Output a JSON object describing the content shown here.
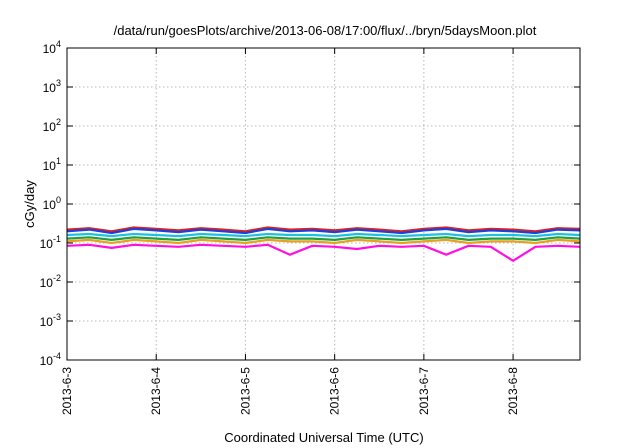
{
  "chart_data": {
    "type": "line",
    "title": "/data/run/goesPlots/archive/2013-06-08/17:00/flux/../bryn/5daysMoon.plot",
    "xlabel": "Coordinated Universal Time (UTC)",
    "ylabel": "cGy/day",
    "y_scale": "log",
    "ylim": [
      0.0001,
      10000
    ],
    "xlim": [
      "2013-06-03",
      "2013-06-08 18:00"
    ],
    "grid": true,
    "legend": "none",
    "x_ticks": [
      "2013-6-3",
      "2013-6-4",
      "2013-6-5",
      "2013-6-6",
      "2013-6-7",
      "2013-6-8"
    ],
    "y_ticks": [
      {
        "mant": "10",
        "exp": "-4"
      },
      {
        "mant": "10",
        "exp": "-3"
      },
      {
        "mant": "10",
        "exp": "-2"
      },
      {
        "mant": "10",
        "exp": "-1"
      },
      {
        "mant": "10",
        "exp": "0"
      },
      {
        "mant": "10",
        "exp": "1"
      },
      {
        "mant": "10",
        "exp": "2"
      },
      {
        "mant": "10",
        "exp": "3"
      },
      {
        "mant": "10",
        "exp": "4"
      }
    ],
    "x_days": [
      0,
      0.25,
      0.5,
      0.75,
      1,
      1.25,
      1.5,
      1.75,
      2,
      2.25,
      2.5,
      2.75,
      3,
      3.25,
      3.5,
      3.75,
      4,
      4.25,
      4.5,
      4.75,
      5,
      5.25,
      5.5,
      5.75
    ],
    "series": [
      {
        "color": "#e0201c",
        "values": [
          0.22,
          0.24,
          0.2,
          0.25,
          0.23,
          0.21,
          0.24,
          0.22,
          0.2,
          0.25,
          0.22,
          0.23,
          0.21,
          0.24,
          0.22,
          0.2,
          0.23,
          0.25,
          0.21,
          0.23,
          0.22,
          0.2,
          0.24,
          0.23
        ]
      },
      {
        "color": "#1f3fd8",
        "values": [
          0.2,
          0.22,
          0.18,
          0.23,
          0.21,
          0.19,
          0.22,
          0.2,
          0.18,
          0.23,
          0.2,
          0.21,
          0.19,
          0.22,
          0.2,
          0.18,
          0.21,
          0.23,
          0.19,
          0.21,
          0.2,
          0.18,
          0.22,
          0.21
        ]
      },
      {
        "color": "#20c0e0",
        "values": [
          0.16,
          0.17,
          0.15,
          0.17,
          0.16,
          0.15,
          0.17,
          0.16,
          0.15,
          0.17,
          0.16,
          0.16,
          0.15,
          0.17,
          0.16,
          0.15,
          0.16,
          0.17,
          0.15,
          0.16,
          0.16,
          0.15,
          0.17,
          0.16
        ]
      },
      {
        "color": "#20a040",
        "values": [
          0.13,
          0.14,
          0.12,
          0.14,
          0.13,
          0.12,
          0.14,
          0.13,
          0.12,
          0.14,
          0.13,
          0.13,
          0.12,
          0.14,
          0.13,
          0.12,
          0.13,
          0.14,
          0.12,
          0.13,
          0.13,
          0.12,
          0.14,
          0.13
        ]
      },
      {
        "color": "#e8a020",
        "values": [
          0.11,
          0.12,
          0.1,
          0.12,
          0.11,
          0.1,
          0.12,
          0.11,
          0.1,
          0.12,
          0.11,
          0.11,
          0.1,
          0.12,
          0.11,
          0.1,
          0.11,
          0.12,
          0.1,
          0.11,
          0.11,
          0.1,
          0.12,
          0.11
        ]
      },
      {
        "color": "#ff10e0",
        "values": [
          0.085,
          0.09,
          0.075,
          0.09,
          0.085,
          0.08,
          0.09,
          0.085,
          0.08,
          0.09,
          0.05,
          0.085,
          0.08,
          0.07,
          0.085,
          0.08,
          0.085,
          0.05,
          0.085,
          0.08,
          0.035,
          0.08,
          0.085,
          0.08
        ]
      }
    ]
  }
}
